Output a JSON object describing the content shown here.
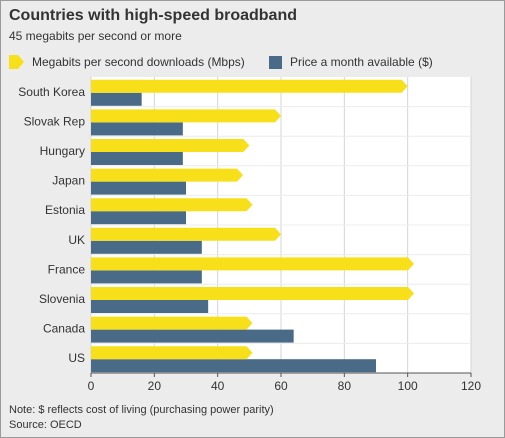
{
  "chart_data": {
    "type": "bar",
    "orientation": "horizontal",
    "title": "Countries with high-speed broadband",
    "subtitle": "45 megabits per second or more",
    "categories": [
      "South Korea",
      "Slovak Rep",
      "Hungary",
      "Japan",
      "Estonia",
      "UK",
      "France",
      "Slovenia",
      "Canada",
      "US"
    ],
    "series": [
      {
        "name": "Megabits per second downloads (Mbps)",
        "color": "#f7e01a",
        "shape": "arrow",
        "values": [
          100,
          60,
          50,
          48,
          51,
          60,
          102,
          102,
          51,
          51
        ]
      },
      {
        "name": "Price a month available ($)",
        "color": "#4a6b87",
        "shape": "bar",
        "values": [
          16,
          29,
          29,
          30,
          30,
          35,
          35,
          37,
          64,
          90
        ]
      }
    ],
    "x_ticks": [
      0,
      20,
      40,
      60,
      80,
      100,
      120
    ],
    "xlim": [
      0,
      120
    ],
    "grid": true,
    "legend_position": "top-left"
  },
  "footer": {
    "note": "Note: $ reflects cost of living (purchasing power parity)",
    "source": "Source: OECD"
  }
}
